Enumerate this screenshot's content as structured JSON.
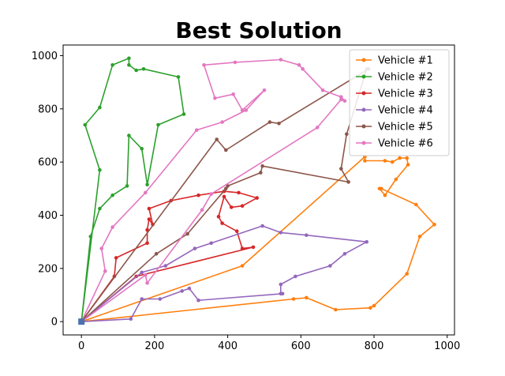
{
  "chart_data": {
    "type": "line",
    "title": "Best Solution",
    "xlabel": "",
    "ylabel": "",
    "xlim": [
      -50,
      1020
    ],
    "ylim": [
      -50,
      1040
    ],
    "xticks": [
      0,
      200,
      400,
      600,
      800,
      1000
    ],
    "yticks": [
      0,
      200,
      400,
      600,
      800,
      1000
    ],
    "grid": false,
    "legend_position": "top-right",
    "depot": {
      "x": 0,
      "y": 0,
      "color": "#4a72b0"
    },
    "series": [
      {
        "name": "Vehicle #1",
        "color": "#ff7f0e",
        "points": [
          [
            0,
            0
          ],
          [
            440,
            210
          ],
          [
            775,
            620
          ],
          [
            775,
            605
          ],
          [
            830,
            605
          ],
          [
            850,
            600
          ],
          [
            870,
            615
          ],
          [
            890,
            615
          ],
          [
            893,
            590
          ],
          [
            860,
            535
          ],
          [
            830,
            475
          ],
          [
            815,
            500
          ],
          [
            820,
            500
          ],
          [
            915,
            440
          ],
          [
            965,
            365
          ],
          [
            925,
            320
          ],
          [
            890,
            180
          ],
          [
            800,
            60
          ],
          [
            790,
            52
          ],
          [
            695,
            45
          ],
          [
            615,
            90
          ],
          [
            580,
            85
          ],
          [
            0,
            0
          ]
        ]
      },
      {
        "name": "Vehicle #2",
        "color": "#2ca02c",
        "points": [
          [
            0,
            0
          ],
          [
            25,
            320
          ],
          [
            50,
            425
          ],
          [
            85,
            475
          ],
          [
            125,
            510
          ],
          [
            130,
            700
          ],
          [
            165,
            650
          ],
          [
            180,
            515
          ],
          [
            210,
            740
          ],
          [
            280,
            780
          ],
          [
            265,
            920
          ],
          [
            170,
            950
          ],
          [
            150,
            945
          ],
          [
            130,
            965
          ],
          [
            130,
            990
          ],
          [
            85,
            965
          ],
          [
            50,
            805
          ],
          [
            10,
            740
          ],
          [
            50,
            570
          ],
          [
            0,
            0
          ]
        ]
      },
      {
        "name": "Vehicle #3",
        "color": "#d62728",
        "points": [
          [
            0,
            0
          ],
          [
            90,
            170
          ],
          [
            95,
            240
          ],
          [
            180,
            295
          ],
          [
            180,
            345
          ],
          [
            185,
            385
          ],
          [
            195,
            365
          ],
          [
            185,
            425
          ],
          [
            245,
            455
          ],
          [
            320,
            475
          ],
          [
            390,
            490
          ],
          [
            430,
            485
          ],
          [
            480,
            465
          ],
          [
            440,
            435
          ],
          [
            410,
            430
          ],
          [
            390,
            470
          ],
          [
            375,
            395
          ],
          [
            385,
            370
          ],
          [
            425,
            340
          ],
          [
            440,
            275
          ],
          [
            470,
            280
          ],
          [
            150,
            170
          ],
          [
            0,
            0
          ]
        ]
      },
      {
        "name": "Vehicle #4",
        "color": "#9467bd",
        "points": [
          [
            0,
            0
          ],
          [
            165,
            185
          ],
          [
            230,
            210
          ],
          [
            310,
            275
          ],
          [
            355,
            295
          ],
          [
            495,
            360
          ],
          [
            545,
            335
          ],
          [
            615,
            325
          ],
          [
            780,
            300
          ],
          [
            720,
            255
          ],
          [
            680,
            210
          ],
          [
            585,
            170
          ],
          [
            545,
            140
          ],
          [
            545,
            105
          ],
          [
            550,
            105
          ],
          [
            320,
            80
          ],
          [
            295,
            125
          ],
          [
            275,
            115
          ],
          [
            215,
            85
          ],
          [
            165,
            85
          ],
          [
            135,
            10
          ],
          [
            0,
            0
          ]
        ]
      },
      {
        "name": "Vehicle #5",
        "color": "#8c564b",
        "points": [
          [
            0,
            0
          ],
          [
            205,
            255
          ],
          [
            290,
            330
          ],
          [
            395,
            500
          ],
          [
            400,
            510
          ],
          [
            490,
            560
          ],
          [
            495,
            585
          ],
          [
            730,
            525
          ],
          [
            710,
            575
          ],
          [
            725,
            705
          ],
          [
            780,
            950
          ],
          [
            785,
            950
          ],
          [
            540,
            745
          ],
          [
            515,
            750
          ],
          [
            395,
            645
          ],
          [
            370,
            685
          ],
          [
            0,
            0
          ]
        ]
      },
      {
        "name": "Vehicle #6",
        "color": "#e377c2",
        "points": [
          [
            0,
            0
          ],
          [
            65,
            190
          ],
          [
            55,
            275
          ],
          [
            85,
            355
          ],
          [
            175,
            485
          ],
          [
            315,
            720
          ],
          [
            385,
            750
          ],
          [
            450,
            795
          ],
          [
            500,
            870
          ],
          [
            440,
            795
          ],
          [
            415,
            855
          ],
          [
            365,
            840
          ],
          [
            335,
            965
          ],
          [
            420,
            975
          ],
          [
            545,
            985
          ],
          [
            595,
            965
          ],
          [
            605,
            950
          ],
          [
            660,
            870
          ],
          [
            710,
            845
          ],
          [
            720,
            830
          ],
          [
            710,
            835
          ],
          [
            645,
            730
          ],
          [
            355,
            480
          ],
          [
            330,
            420
          ],
          [
            180,
            145
          ],
          [
            175,
            175
          ],
          [
            0,
            0
          ]
        ]
      }
    ]
  }
}
